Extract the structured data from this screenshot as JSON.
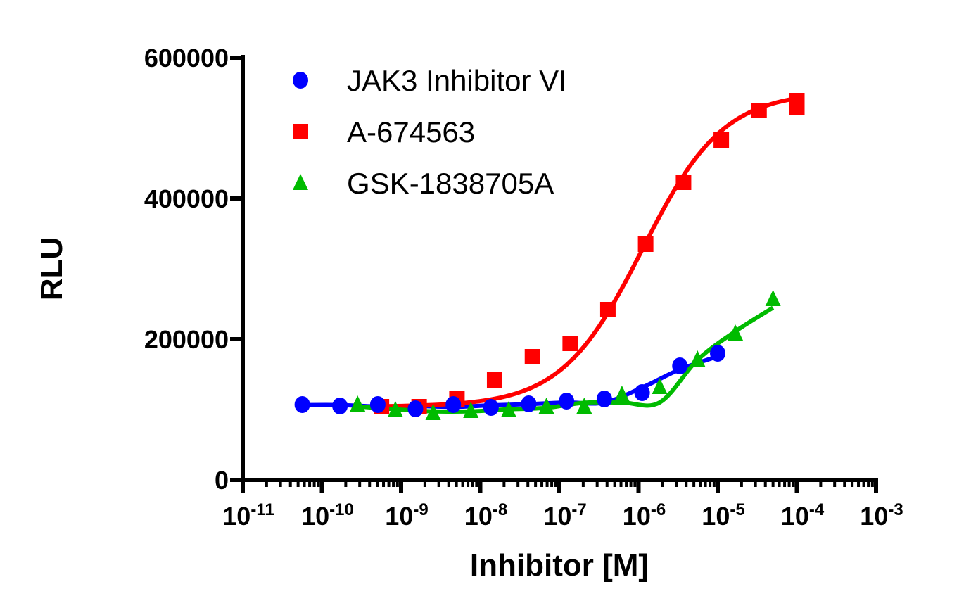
{
  "chart_data": {
    "type": "scatter",
    "title": "",
    "xlabel": "Inhibitor [M]",
    "ylabel": "RLU",
    "xscale": "log",
    "xlim": [
      1e-11,
      0.001
    ],
    "ylim": [
      0,
      600000
    ],
    "x_ticks": [
      {
        "base": "10",
        "exp": "-11"
      },
      {
        "base": "10",
        "exp": "-10"
      },
      {
        "base": "10",
        "exp": "-9"
      },
      {
        "base": "10",
        "exp": "-8"
      },
      {
        "base": "10",
        "exp": "-7"
      },
      {
        "base": "10",
        "exp": "-6"
      },
      {
        "base": "10",
        "exp": "-5"
      },
      {
        "base": "10",
        "exp": "-4"
      },
      {
        "base": "10",
        "exp": "-3"
      }
    ],
    "y_ticks": [
      "0",
      "200000",
      "400000",
      "600000"
    ],
    "grid": false,
    "legend_position": "top-left",
    "series": [
      {
        "name": "JAK3 Inhibitor VI",
        "marker": "circle",
        "color": "#0000ff",
        "fit": "sigmoidal",
        "x": [
          5.65e-11,
          1.69e-10,
          5.08e-10,
          1.52e-09,
          4.57e-09,
          1.37e-08,
          4.1e-08,
          1.23e-07,
          3.7e-07,
          1.11e-06,
          3.33e-06,
          1e-05
        ],
        "y": [
          107000,
          105000,
          107000,
          101000,
          107000,
          103000,
          108000,
          112000,
          115000,
          124000,
          162000,
          180000
        ]
      },
      {
        "name": "A-674563",
        "marker": "square",
        "color": "#ff0000",
        "fit": "sigmoidal",
        "x": [
          5.65e-10,
          1.69e-09,
          5.08e-09,
          1.52e-08,
          4.57e-08,
          1.37e-07,
          4.1e-07,
          1.23e-06,
          3.7e-06,
          1.11e-05,
          3.33e-05,
          0.0001,
          0.0001
        ],
        "y": [
          104000,
          104000,
          115000,
          142000,
          175000,
          194000,
          242000,
          335000,
          423000,
          483000,
          525000,
          539000,
          530000
        ]
      },
      {
        "name": "GSK-1838705A",
        "marker": "triangle",
        "color": "#00bb00",
        "fit": "sigmoidal",
        "x": [
          2.82e-10,
          8.47e-10,
          2.54e-09,
          7.62e-09,
          2.29e-08,
          6.86e-08,
          2.06e-07,
          6.17e-07,
          1.85e-06,
          5.56e-06,
          1.67e-05,
          5e-05
        ],
        "y": [
          107000,
          99000,
          95000,
          98000,
          99000,
          104000,
          104000,
          121000,
          132000,
          171000,
          208000,
          257000
        ]
      }
    ]
  }
}
